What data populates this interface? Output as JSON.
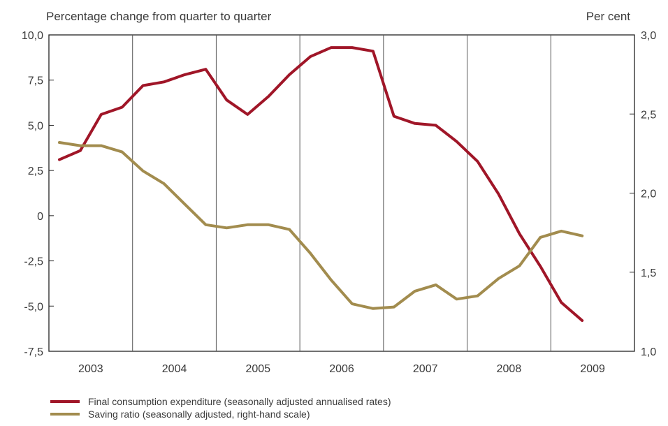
{
  "chart_data": {
    "type": "line",
    "left_axis_title": "Percentage change from quarter to quarter",
    "right_axis_title": "Per cent",
    "left_ylim": [
      -7.5,
      10.0
    ],
    "right_ylim": [
      1.0,
      3.0
    ],
    "left_ticks": [
      "10,0",
      "7,5",
      "5,0",
      "2,5",
      "0",
      "-2,5",
      "-5,0",
      "-7,5"
    ],
    "right_ticks": [
      "3,0",
      "2,5",
      "2,0",
      "1,5",
      "1,0"
    ],
    "categories": [
      "2003",
      "2004",
      "2005",
      "2006",
      "2007",
      "2008",
      "2009"
    ],
    "quarters_per_year": 4,
    "grid": "vertical separators between years",
    "series": [
      {
        "name": "Final consumption expenditure (seasonally adjusted annualised rates)",
        "axis": "left",
        "color": "#a01628",
        "x": [
          "2003Q1",
          "2003Q2",
          "2003Q3",
          "2003Q4",
          "2004Q1",
          "2004Q2",
          "2004Q3",
          "2004Q4",
          "2005Q1",
          "2005Q2",
          "2005Q3",
          "2005Q4",
          "2006Q1",
          "2006Q2",
          "2006Q3",
          "2006Q4",
          "2007Q1",
          "2007Q2",
          "2007Q3",
          "2007Q4",
          "2008Q1",
          "2008Q2",
          "2008Q3",
          "2008Q4",
          "2009Q1",
          "2009Q2"
        ],
        "values": [
          3.1,
          3.6,
          5.6,
          6.0,
          7.2,
          7.4,
          7.8,
          8.1,
          6.4,
          5.6,
          6.6,
          7.8,
          8.8,
          9.3,
          9.3,
          9.1,
          5.5,
          5.1,
          5.0,
          4.1,
          3.0,
          1.2,
          -1.0,
          -2.8,
          -4.8,
          -5.8
        ]
      },
      {
        "name": "Saving ratio (seasonally adjusted, right-hand scale)",
        "axis": "right",
        "color": "#a28c4e",
        "x": [
          "2003Q1",
          "2003Q2",
          "2003Q3",
          "2003Q4",
          "2004Q1",
          "2004Q2",
          "2004Q3",
          "2004Q4",
          "2005Q1",
          "2005Q2",
          "2005Q3",
          "2005Q4",
          "2006Q1",
          "2006Q2",
          "2006Q3",
          "2006Q4",
          "2007Q1",
          "2007Q2",
          "2007Q3",
          "2007Q4",
          "2008Q1",
          "2008Q2",
          "2008Q3",
          "2008Q4",
          "2009Q1",
          "2009Q2"
        ],
        "values": [
          2.32,
          2.3,
          2.3,
          2.26,
          2.14,
          2.06,
          1.93,
          1.8,
          1.78,
          1.8,
          1.8,
          1.77,
          1.62,
          1.45,
          1.3,
          1.27,
          1.28,
          1.38,
          1.42,
          1.33,
          1.35,
          1.46,
          1.54,
          1.72,
          1.76,
          1.73
        ]
      }
    ]
  }
}
